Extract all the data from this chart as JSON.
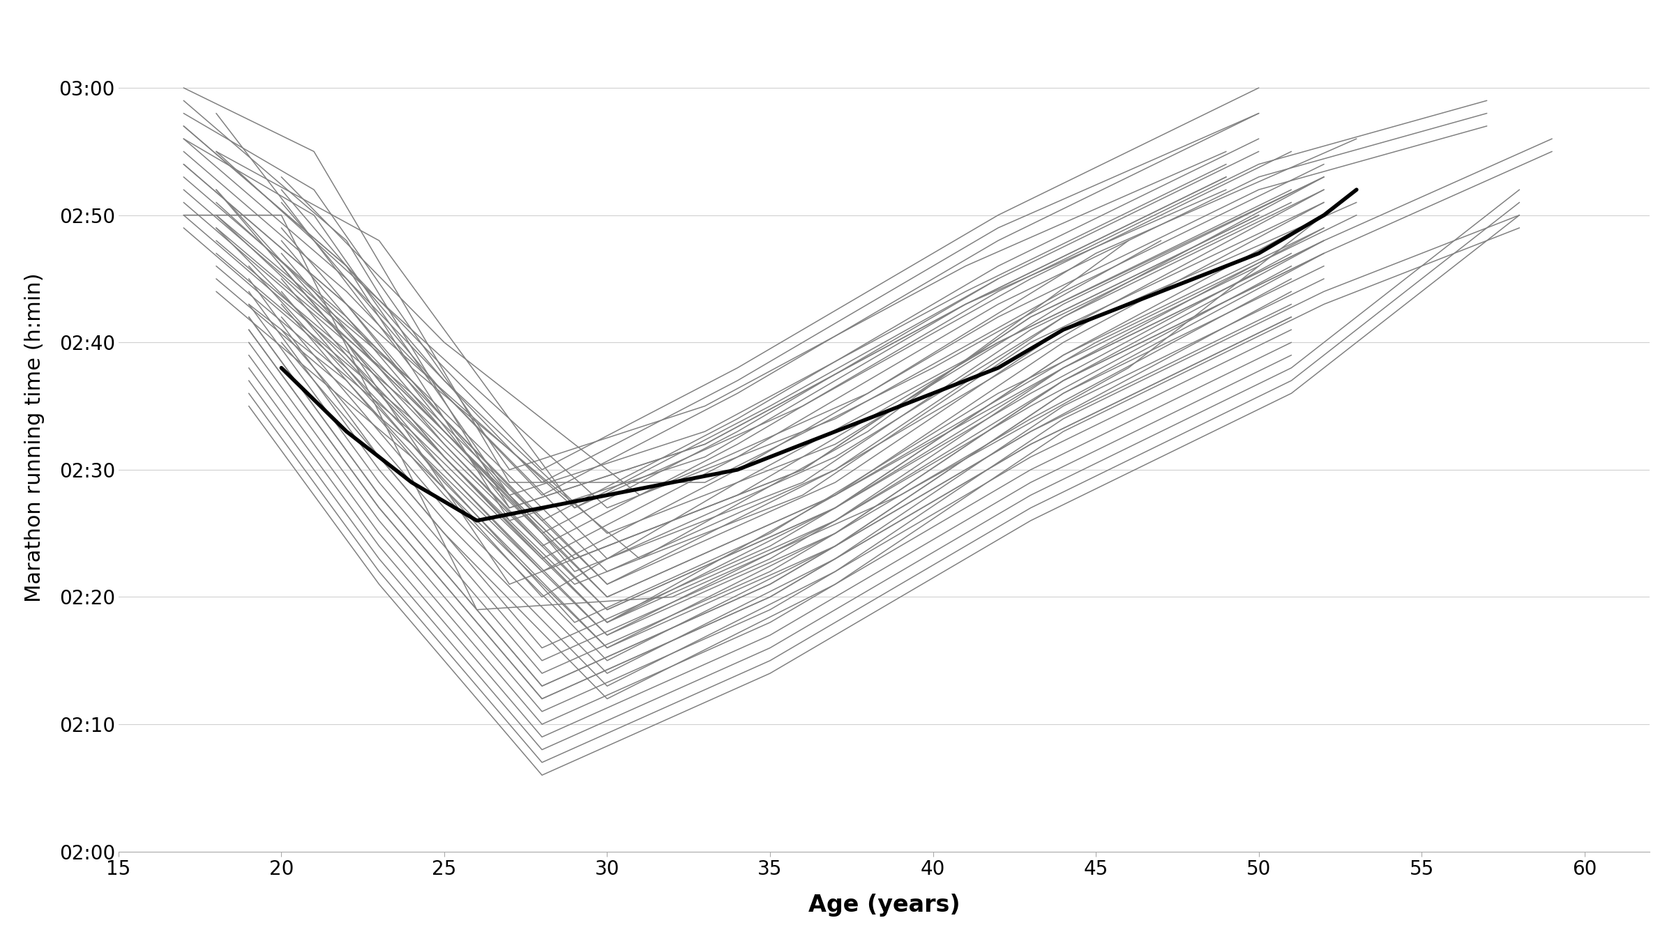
{
  "xlabel": "Age (years)",
  "ylabel": "Marathon running time (h:min)",
  "xlim": [
    15,
    62
  ],
  "ylim": [
    120,
    185
  ],
  "xticks": [
    15,
    20,
    25,
    30,
    35,
    40,
    45,
    50,
    55,
    60
  ],
  "yticks": [
    120,
    130,
    140,
    150,
    160,
    170,
    180
  ],
  "ytick_labels": [
    "02:00",
    "02:10",
    "02:20",
    "02:30",
    "02:40",
    "02:50",
    "03:00"
  ],
  "background_color": "#ffffff",
  "grid_color": "#d0d0d0",
  "individual_color": "#808080",
  "mean_color": "#000000",
  "individual_lw": 1.1,
  "mean_lw": 4.0,
  "individuals": [
    [
      17,
      174,
      22,
      163,
      29,
      147,
      35,
      155,
      42,
      165
    ],
    [
      18,
      178,
      24,
      158,
      31,
      143,
      38,
      153,
      46,
      168
    ],
    [
      17,
      170,
      20,
      170,
      26,
      139,
      32,
      140,
      39,
      148,
      46,
      158,
      53,
      172
    ],
    [
      19,
      163,
      22,
      157,
      28,
      140,
      34,
      149,
      42,
      160,
      50,
      170
    ],
    [
      18,
      175,
      23,
      168,
      29,
      147,
      36,
      155,
      43,
      165,
      51,
      175
    ],
    [
      20,
      172,
      25,
      157,
      30,
      145,
      37,
      152,
      44,
      163,
      52,
      173
    ],
    [
      17,
      180,
      21,
      175,
      27,
      149,
      33,
      149,
      40,
      158,
      47,
      168
    ],
    [
      19,
      166,
      24,
      152,
      29,
      138,
      35,
      145,
      42,
      156,
      50,
      166
    ],
    [
      18,
      172,
      22,
      160,
      27,
      141,
      34,
      148,
      42,
      160,
      50,
      170
    ],
    [
      20,
      168,
      25,
      153,
      30,
      140,
      37,
      148,
      44,
      158,
      52,
      168
    ],
    [
      17,
      176,
      21,
      170,
      27,
      148,
      33,
      153,
      41,
      164,
      49,
      174
    ],
    [
      19,
      164,
      23,
      150,
      28,
      135,
      35,
      143,
      43,
      155,
      51,
      166
    ],
    [
      18,
      170,
      23,
      158,
      29,
      143,
      36,
      150,
      43,
      162,
      51,
      172
    ],
    [
      20,
      173,
      25,
      160,
      31,
      148,
      38,
      156,
      45,
      167,
      53,
      176
    ],
    [
      17,
      179,
      22,
      168,
      27,
      147,
      33,
      152,
      41,
      163,
      49,
      172
    ],
    [
      19,
      165,
      23,
      151,
      28,
      136,
      35,
      144,
      43,
      156,
      51,
      167
    ],
    [
      18,
      175,
      24,
      161,
      30,
      147,
      37,
      154,
      44,
      164,
      52,
      174
    ],
    [
      20,
      169,
      25,
      154,
      30,
      141,
      37,
      150,
      45,
      162,
      53,
      171
    ],
    [
      17,
      178,
      21,
      172,
      27,
      150,
      33,
      155,
      41,
      166,
      49,
      175
    ],
    [
      19,
      162,
      23,
      148,
      28,
      133,
      35,
      141,
      43,
      153,
      51,
      164
    ],
    [
      18,
      172,
      23,
      158,
      29,
      143,
      36,
      150,
      43,
      162,
      52,
      173
    ],
    [
      20,
      166,
      25,
      151,
      30,
      138,
      37,
      147,
      44,
      159,
      52,
      169
    ],
    [
      17,
      177,
      22,
      166,
      27,
      146,
      33,
      151,
      41,
      163,
      49,
      173
    ],
    [
      19,
      163,
      23,
      149,
      28,
      134,
      35,
      142,
      43,
      154,
      51,
      165
    ],
    [
      18,
      171,
      24,
      157,
      29,
      142,
      36,
      149,
      43,
      161,
      51,
      171
    ],
    [
      20,
      167,
      25,
      152,
      30,
      139,
      37,
      147,
      44,
      158,
      52,
      168
    ],
    [
      17,
      175,
      22,
      164,
      28,
      148,
      34,
      156,
      42,
      168,
      50,
      178
    ],
    [
      19,
      161,
      23,
      147,
      28,
      132,
      35,
      140,
      43,
      152,
      51,
      162
    ],
    [
      18,
      169,
      23,
      156,
      29,
      141,
      36,
      148,
      43,
      160,
      52,
      171
    ],
    [
      20,
      165,
      25,
      150,
      30,
      137,
      37,
      146,
      44,
      157,
      52,
      167
    ],
    [
      17,
      174,
      22,
      163,
      27,
      147,
      33,
      152,
      41,
      163,
      49,
      173
    ],
    [
      19,
      160,
      23,
      146,
      28,
      131,
      35,
      139,
      43,
      151,
      51,
      161
    ],
    [
      18,
      168,
      24,
      155,
      30,
      140,
      37,
      148,
      44,
      160,
      52,
      171
    ],
    [
      20,
      171,
      25,
      156,
      30,
      143,
      37,
      151,
      44,
      162,
      52,
      172
    ],
    [
      17,
      177,
      22,
      166,
      28,
      150,
      34,
      158,
      42,
      170,
      50,
      180
    ],
    [
      19,
      162,
      23,
      148,
      28,
      133,
      35,
      141,
      43,
      153,
      51,
      163
    ],
    [
      18,
      170,
      24,
      157,
      30,
      142,
      37,
      150,
      44,
      162,
      52,
      173
    ],
    [
      20,
      166,
      25,
      151,
      30,
      138,
      37,
      148,
      45,
      160,
      53,
      170
    ],
    [
      17,
      176,
      22,
      165,
      28,
      149,
      34,
      157,
      42,
      169,
      50,
      178
    ],
    [
      19,
      161,
      23,
      147,
      28,
      132,
      35,
      140,
      43,
      152,
      51,
      162
    ],
    [
      18,
      169,
      24,
      156,
      30,
      141,
      37,
      149,
      44,
      161,
      52,
      172
    ],
    [
      20,
      164,
      25,
      149,
      30,
      136,
      37,
      145,
      44,
      157,
      52,
      167
    ],
    [
      17,
      173,
      22,
      162,
      28,
      146,
      34,
      154,
      42,
      166,
      50,
      176
    ],
    [
      19,
      159,
      23,
      145,
      28,
      130,
      35,
      138,
      43,
      150,
      51,
      160
    ],
    [
      18,
      167,
      24,
      154,
      30,
      139,
      37,
      147,
      44,
      159,
      52,
      170
    ],
    [
      20,
      163,
      25,
      148,
      30,
      135,
      37,
      144,
      44,
      156,
      52,
      166
    ],
    [
      17,
      172,
      22,
      161,
      28,
      145,
      34,
      153,
      42,
      165,
      50,
      175
    ],
    [
      19,
      158,
      23,
      144,
      28,
      129,
      35,
      137,
      43,
      149,
      51,
      159
    ],
    [
      18,
      166,
      24,
      153,
      30,
      138,
      37,
      146,
      44,
      158,
      52,
      169
    ],
    [
      20,
      162,
      25,
      147,
      30,
      134,
      37,
      143,
      44,
      155,
      52,
      165
    ],
    [
      17,
      171,
      22,
      160,
      28,
      144,
      34,
      152,
      42,
      164,
      50,
      174,
      57,
      179
    ],
    [
      19,
      157,
      23,
      143,
      28,
      128,
      35,
      136,
      43,
      148,
      51,
      158,
      58,
      172
    ],
    [
      18,
      165,
      24,
      152,
      30,
      137,
      37,
      145,
      44,
      157,
      52,
      168,
      59,
      176
    ],
    [
      20,
      161,
      25,
      146,
      30,
      133,
      37,
      142,
      44,
      154,
      52,
      164,
      58,
      170
    ],
    [
      17,
      170,
      22,
      159,
      28,
      143,
      34,
      151,
      42,
      163,
      50,
      173,
      57,
      178
    ],
    [
      19,
      156,
      23,
      142,
      28,
      127,
      35,
      135,
      43,
      147,
      51,
      157,
      58,
      171
    ],
    [
      18,
      164,
      24,
      151,
      30,
      136,
      37,
      144,
      44,
      156,
      52,
      167,
      59,
      175
    ],
    [
      20,
      160,
      25,
      145,
      30,
      132,
      37,
      141,
      44,
      153,
      52,
      163,
      58,
      169
    ],
    [
      17,
      169,
      22,
      158,
      28,
      142,
      34,
      150,
      42,
      162,
      50,
      172,
      57,
      177
    ],
    [
      19,
      155,
      23,
      141,
      28,
      126,
      35,
      134,
      43,
      146,
      51,
      156,
      58,
      170
    ]
  ],
  "mean_line": [
    [
      20,
      158
    ],
    [
      22,
      153
    ],
    [
      24,
      149
    ],
    [
      26,
      146
    ],
    [
      28,
      147
    ],
    [
      30,
      148
    ],
    [
      32,
      149
    ],
    [
      34,
      150
    ],
    [
      36,
      152
    ],
    [
      38,
      154
    ],
    [
      40,
      156
    ],
    [
      42,
      158
    ],
    [
      44,
      161
    ],
    [
      46,
      163
    ],
    [
      48,
      165
    ],
    [
      50,
      167
    ],
    [
      52,
      170
    ],
    [
      53,
      172
    ]
  ]
}
